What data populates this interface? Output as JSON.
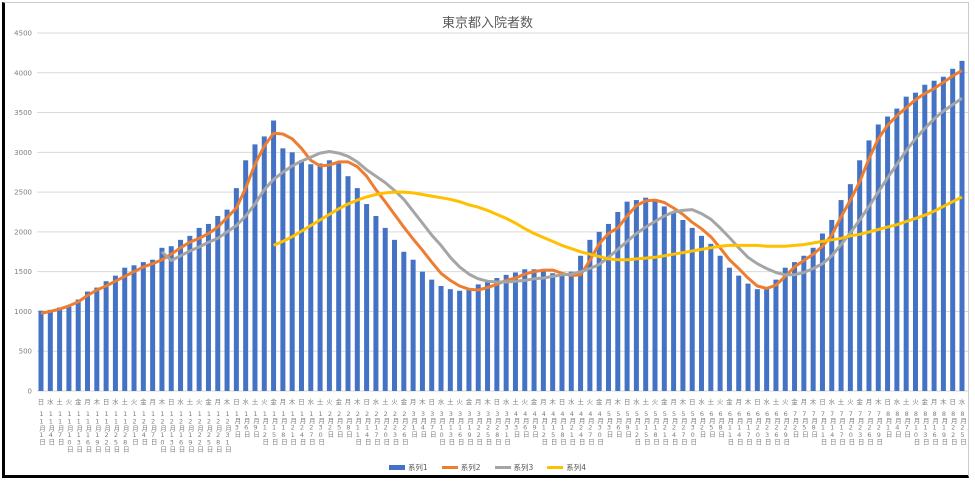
{
  "chart_data": {
    "type": "bar+line",
    "title": "東京都入院者数",
    "ylim": [
      0,
      4500
    ],
    "yticks": [
      0,
      500,
      1000,
      1500,
      2000,
      2500,
      3000,
      3500,
      4000,
      4500
    ],
    "grid": true,
    "legend_position": "bottom",
    "colors": {
      "series1": "#4472C4",
      "series2": "#ED7D31",
      "series3": "#A5A5A5",
      "series4": "#FFC000"
    },
    "categories": [
      "11月1日",
      "11月4日",
      "11月7日",
      "11月10日",
      "11月13日",
      "11月16日",
      "11月19日",
      "11月22日",
      "11月25日",
      "11月28日",
      "12月1日",
      "12月4日",
      "12月7日",
      "12月10日",
      "12月13日",
      "12月16日",
      "12月19日",
      "12月22日",
      "12月25日",
      "12月28日",
      "12月31日",
      "1月3日",
      "1月6日",
      "1月9日",
      "1月12日",
      "1月15日",
      "1月18日",
      "1月21日",
      "1月24日",
      "1月27日",
      "1月30日",
      "2月2日",
      "2月5日",
      "2月8日",
      "2月11日",
      "2月14日",
      "2月17日",
      "2月20日",
      "2月23日",
      "2月26日",
      "3月1日",
      "3月4日",
      "3月7日",
      "3月10日",
      "3月13日",
      "3月16日",
      "3月19日",
      "3月22日",
      "3月25日",
      "3月28日",
      "3月31日",
      "4月3日",
      "4月6日",
      "4月9日",
      "4月12日",
      "4月15日",
      "4月18日",
      "4月21日",
      "4月24日",
      "4月27日",
      "4月30日",
      "5月3日",
      "5月6日",
      "5月9日",
      "5月12日",
      "5月15日",
      "5月18日",
      "5月21日",
      "5月24日",
      "5月27日",
      "5月30日",
      "6月2日",
      "6月5日",
      "6月8日",
      "6月11日",
      "6月14日",
      "6月17日",
      "6月20日",
      "6月23日",
      "6月26日",
      "6月29日",
      "7月2日",
      "7月5日",
      "7月8日",
      "7月11日",
      "7月14日",
      "7月17日",
      "7月20日",
      "7月23日",
      "7月26日",
      "7月29日",
      "8月1日",
      "8月4日",
      "8月7日",
      "8月10日",
      "8月13日",
      "8月16日",
      "8月19日",
      "8月22日",
      "8月25日"
    ],
    "weekdays": [
      "日",
      "水",
      "土",
      "火",
      "金",
      "月",
      "木"
    ],
    "series": [
      {
        "name": "系列1",
        "kind": "bar",
        "values": [
          1010,
          1020,
          1050,
          1060,
          1150,
          1250,
          1300,
          1380,
          1450,
          1550,
          1580,
          1620,
          1650,
          1800,
          1820,
          1900,
          1950,
          2050,
          2100,
          2200,
          2280,
          2550,
          2900,
          3100,
          3200,
          3400,
          3050,
          3000,
          2900,
          2850,
          2860,
          2900,
          2860,
          2700,
          2550,
          2350,
          2200,
          2050,
          1900,
          1750,
          1650,
          1500,
          1400,
          1320,
          1280,
          1260,
          1280,
          1340,
          1380,
          1420,
          1460,
          1490,
          1530,
          1530,
          1520,
          1480,
          1450,
          1500,
          1700,
          1900,
          2000,
          2100,
          2250,
          2380,
          2400,
          2430,
          2400,
          2320,
          2250,
          2150,
          2050,
          1950,
          1850,
          1700,
          1550,
          1450,
          1350,
          1280,
          1300,
          1400,
          1550,
          1620,
          1700,
          1800,
          1980,
          2150,
          2400,
          2600,
          2900,
          3150,
          3350,
          3450,
          3550,
          3700,
          3750,
          3850,
          3900,
          3950,
          4050,
          4150
        ]
      },
      {
        "name": "系列2",
        "kind": "line",
        "values": [
          975,
          1000,
          1030,
          1070,
          1120,
          1200,
          1270,
          1320,
          1380,
          1440,
          1500,
          1560,
          1600,
          1650,
          1720,
          1800,
          1870,
          1920,
          1980,
          2060,
          2180,
          2300,
          2550,
          2850,
          3080,
          3240,
          3230,
          3170,
          3050,
          2900,
          2830,
          2840,
          2880,
          2880,
          2820,
          2700,
          2530,
          2380,
          2220,
          2060,
          1910,
          1770,
          1620,
          1480,
          1390,
          1320,
          1280,
          1270,
          1300,
          1340,
          1390,
          1420,
          1470,
          1500,
          1520,
          1520,
          1480,
          1450,
          1460,
          1640,
          1850,
          1980,
          2050,
          2200,
          2330,
          2390,
          2400,
          2370,
          2300,
          2220,
          2120,
          2040,
          1940,
          1800,
          1650,
          1540,
          1420,
          1320,
          1290,
          1330,
          1440,
          1560,
          1640,
          1720,
          1820,
          1960,
          2190,
          2400,
          2630,
          2920,
          3170,
          3340,
          3460,
          3560,
          3660,
          3740,
          3800,
          3880,
          3960,
          4030
        ]
      },
      {
        "name": "系列3",
        "kind": "line",
        "values": [
          null,
          null,
          null,
          null,
          null,
          null,
          null,
          null,
          null,
          null,
          null,
          null,
          null,
          1750,
          1640,
          1700,
          1760,
          1810,
          1870,
          1920,
          2000,
          2080,
          2200,
          2350,
          2530,
          2660,
          2750,
          2830,
          2890,
          2940,
          2990,
          3010,
          2990,
          2950,
          2880,
          2780,
          2700,
          2620,
          2520,
          2410,
          2260,
          2110,
          1960,
          1830,
          1680,
          1560,
          1470,
          1410,
          1380,
          1370,
          1370,
          1380,
          1390,
          1410,
          1420,
          1440,
          1460,
          1470,
          1500,
          1540,
          1590,
          1680,
          1780,
          1880,
          1980,
          2060,
          2130,
          2200,
          2250,
          2270,
          2280,
          2230,
          2160,
          2050,
          1930,
          1800,
          1680,
          1600,
          1540,
          1490,
          1460,
          1460,
          1490,
          1540,
          1600,
          1700,
          1840,
          1990,
          2150,
          2320,
          2500,
          2680,
          2850,
          3020,
          3170,
          3300,
          3420,
          3520,
          3600,
          3680
        ]
      },
      {
        "name": "系列4",
        "kind": "line",
        "values": [
          null,
          null,
          null,
          null,
          null,
          null,
          null,
          null,
          null,
          null,
          null,
          null,
          null,
          null,
          null,
          null,
          null,
          null,
          null,
          null,
          null,
          null,
          null,
          null,
          null,
          1830,
          1880,
          1940,
          2010,
          2080,
          2150,
          2220,
          2290,
          2350,
          2400,
          2440,
          2470,
          2490,
          2500,
          2500,
          2490,
          2470,
          2450,
          2430,
          2410,
          2380,
          2340,
          2310,
          2270,
          2220,
          2170,
          2110,
          2040,
          1980,
          1930,
          1880,
          1830,
          1790,
          1750,
          1720,
          1690,
          1660,
          1650,
          1650,
          1660,
          1670,
          1680,
          1700,
          1720,
          1740,
          1760,
          1780,
          1800,
          1820,
          1830,
          1830,
          1830,
          1830,
          1820,
          1820,
          1820,
          1830,
          1840,
          1860,
          1880,
          1900,
          1920,
          1950,
          1970,
          2000,
          2030,
          2060,
          2090,
          2130,
          2170,
          2210,
          2260,
          2320,
          2380,
          2440
        ]
      }
    ]
  }
}
